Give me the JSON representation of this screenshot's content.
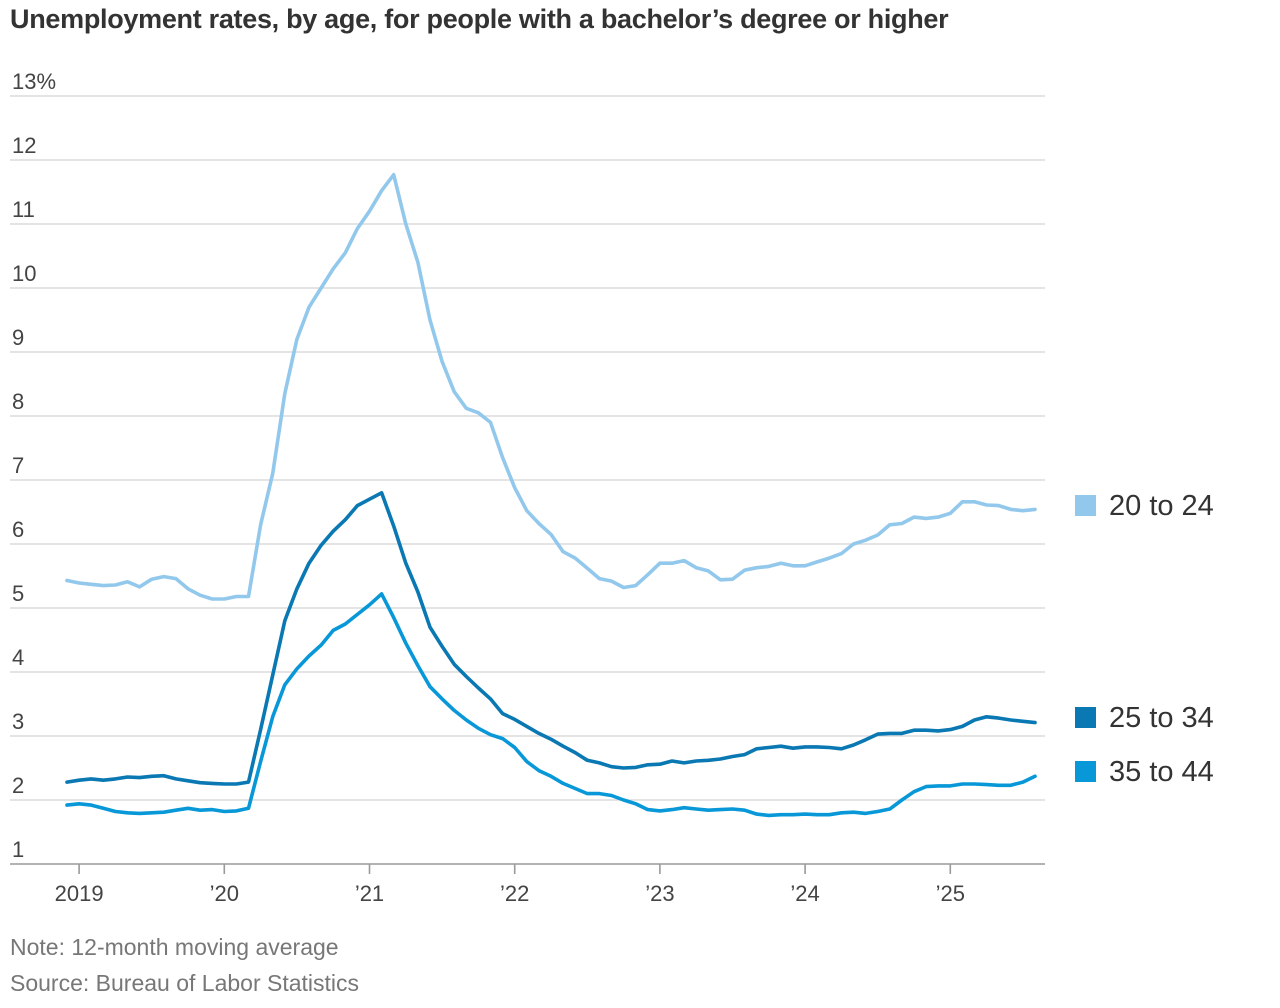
{
  "title": "Unemployment rates, by age, for people with a bachelor’s degree or higher",
  "note": "Note: 12-month moving average",
  "source": "Source: Bureau of Labor Statistics",
  "chart_data": {
    "type": "line",
    "title": "Unemployment rates, by age, for people with a bachelor’s degree or higher",
    "xlabel": "",
    "ylabel": "",
    "ylim": [
      1,
      13
    ],
    "y_ticks": [
      "13%",
      "12",
      "11",
      "10",
      "9",
      "8",
      "7",
      "6",
      "5",
      "4",
      "3",
      "2",
      "1"
    ],
    "x_tick_labels": [
      "2019",
      "’20",
      "’21",
      "’22",
      "’23",
      "’24",
      "’25"
    ],
    "x_range": [
      "2018-12",
      "2025-08"
    ],
    "grid": true,
    "legend_position": "right",
    "x": [
      "2018-12",
      "2019-01",
      "2019-02",
      "2019-03",
      "2019-04",
      "2019-05",
      "2019-06",
      "2019-07",
      "2019-08",
      "2019-09",
      "2019-10",
      "2019-11",
      "2019-12",
      "2020-01",
      "2020-02",
      "2020-03",
      "2020-04",
      "2020-05",
      "2020-06",
      "2020-07",
      "2020-08",
      "2020-09",
      "2020-10",
      "2020-11",
      "2020-12",
      "2021-01",
      "2021-02",
      "2021-03",
      "2021-04",
      "2021-05",
      "2021-06",
      "2021-07",
      "2021-08",
      "2021-09",
      "2021-10",
      "2021-11",
      "2021-12",
      "2022-01",
      "2022-02",
      "2022-03",
      "2022-04",
      "2022-05",
      "2022-06",
      "2022-07",
      "2022-08",
      "2022-09",
      "2022-10",
      "2022-11",
      "2022-12",
      "2023-01",
      "2023-02",
      "2023-03",
      "2023-04",
      "2023-05",
      "2023-06",
      "2023-07",
      "2023-08",
      "2023-09",
      "2023-10",
      "2023-11",
      "2023-12",
      "2024-01",
      "2024-02",
      "2024-03",
      "2024-04",
      "2024-05",
      "2024-06",
      "2024-07",
      "2024-08",
      "2024-09",
      "2024-10",
      "2024-11",
      "2024-12",
      "2025-01",
      "2025-02",
      "2025-03",
      "2025-04",
      "2025-05",
      "2025-06",
      "2025-07",
      "2025-08"
    ],
    "series": [
      {
        "name": "20 to 24",
        "color": "#92c8ec",
        "values": [
          5.43,
          5.39,
          5.37,
          5.35,
          5.36,
          5.41,
          5.33,
          5.45,
          5.49,
          5.46,
          5.3,
          5.2,
          5.14,
          5.14,
          5.18,
          5.18,
          6.3,
          7.1,
          8.35,
          9.2,
          9.7,
          10.0,
          10.3,
          10.55,
          10.93,
          11.2,
          11.52,
          11.77,
          11.0,
          10.4,
          9.5,
          8.85,
          8.38,
          8.12,
          8.05,
          7.9,
          7.35,
          6.88,
          6.52,
          6.32,
          6.15,
          5.88,
          5.78,
          5.62,
          5.46,
          5.42,
          5.32,
          5.35,
          5.52,
          5.7,
          5.7,
          5.74,
          5.63,
          5.58,
          5.44,
          5.45,
          5.59,
          5.63,
          5.65,
          5.7,
          5.66,
          5.66,
          5.72,
          5.78,
          5.85,
          6.0,
          6.06,
          6.14,
          6.3,
          6.32,
          6.42,
          6.4,
          6.42,
          6.48,
          6.66,
          6.66,
          6.61,
          6.6,
          6.54,
          6.52,
          6.54
        ]
      },
      {
        "name": "25 to 34",
        "color": "#0a78b2",
        "values": [
          2.28,
          2.31,
          2.33,
          2.31,
          2.33,
          2.36,
          2.35,
          2.37,
          2.38,
          2.33,
          2.3,
          2.27,
          2.26,
          2.25,
          2.25,
          2.28,
          3.1,
          3.95,
          4.8,
          5.3,
          5.7,
          5.98,
          6.2,
          6.38,
          6.6,
          6.7,
          6.8,
          6.28,
          5.7,
          5.25,
          4.7,
          4.4,
          4.12,
          3.93,
          3.75,
          3.58,
          3.35,
          3.26,
          3.15,
          3.04,
          2.95,
          2.84,
          2.74,
          2.62,
          2.58,
          2.52,
          2.5,
          2.51,
          2.55,
          2.56,
          2.61,
          2.58,
          2.61,
          2.62,
          2.64,
          2.68,
          2.71,
          2.8,
          2.82,
          2.84,
          2.81,
          2.83,
          2.83,
          2.82,
          2.8,
          2.86,
          2.94,
          3.03,
          3.04,
          3.04,
          3.09,
          3.09,
          3.08,
          3.1,
          3.15,
          3.25,
          3.3,
          3.28,
          3.25,
          3.23,
          3.21
        ]
      },
      {
        "name": "35 to 44",
        "color": "#0898d8",
        "values": [
          1.92,
          1.94,
          1.92,
          1.87,
          1.82,
          1.8,
          1.79,
          1.8,
          1.81,
          1.84,
          1.87,
          1.84,
          1.85,
          1.82,
          1.83,
          1.87,
          2.6,
          3.3,
          3.8,
          4.05,
          4.25,
          4.42,
          4.65,
          4.75,
          4.9,
          5.05,
          5.22,
          4.85,
          4.45,
          4.1,
          3.77,
          3.58,
          3.4,
          3.25,
          3.12,
          3.02,
          2.96,
          2.82,
          2.6,
          2.46,
          2.37,
          2.26,
          2.18,
          2.1,
          2.1,
          2.07,
          2.0,
          1.94,
          1.85,
          1.83,
          1.85,
          1.88,
          1.86,
          1.84,
          1.85,
          1.86,
          1.84,
          1.78,
          1.76,
          1.77,
          1.77,
          1.78,
          1.77,
          1.77,
          1.8,
          1.81,
          1.79,
          1.82,
          1.86,
          2.0,
          2.13,
          2.21,
          2.22,
          2.22,
          2.25,
          2.25,
          2.24,
          2.23,
          2.23,
          2.28,
          2.37
        ]
      }
    ]
  }
}
